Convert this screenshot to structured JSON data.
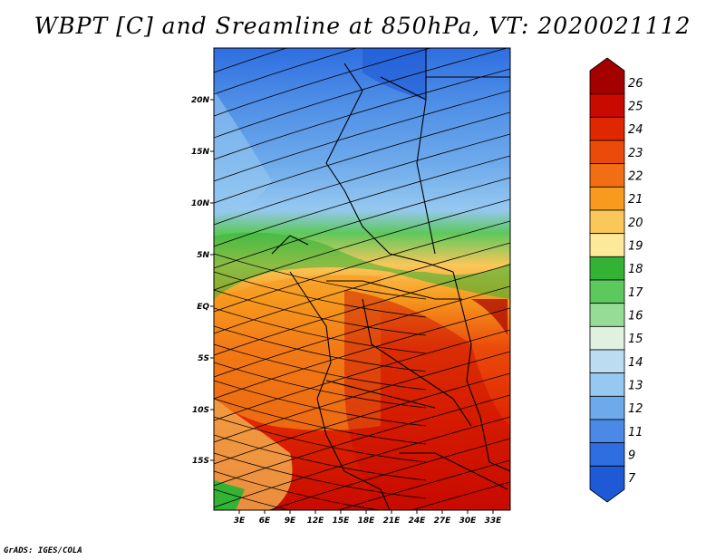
{
  "title": "WBPT [C] and Sreamline at 850hPa, VT: 2020021112",
  "credit": "GrADS: IGES/COLA",
  "map": {
    "region": {
      "lon_range": [
        0,
        35
      ],
      "lat_range": [
        -20,
        25
      ]
    },
    "lat_ticks": [
      "20N",
      "15N",
      "10N",
      "5N",
      "EQ",
      "5S",
      "10S",
      "15S"
    ],
    "lon_ticks": [
      "3E",
      "6E",
      "9E",
      "12E",
      "15E",
      "18E",
      "21E",
      "24E",
      "27E",
      "30E",
      "33E"
    ],
    "field": "WBPT",
    "units": "C",
    "level": "850hPa",
    "valid_time": "2020021112"
  },
  "colorbar": {
    "levels": [
      "26",
      "25",
      "24",
      "23",
      "22",
      "21",
      "20",
      "19",
      "18",
      "17",
      "16",
      "15",
      "14",
      "13",
      "12",
      "11",
      "9",
      "7"
    ],
    "colors": [
      "#a50000",
      "#c80a00",
      "#e02800",
      "#ea4a0a",
      "#f26e14",
      "#f79a1e",
      "#fac75a",
      "#fde99a",
      "#33b233",
      "#5dc85d",
      "#96dc96",
      "#dff2df",
      "#bcdcf2",
      "#96c8f0",
      "#6eaaeb",
      "#4a8ae6",
      "#2e6ee0",
      "#1e5ad6"
    ]
  }
}
